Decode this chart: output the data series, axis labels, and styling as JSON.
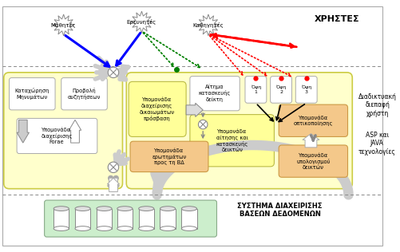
{
  "title_xrhstes": "ΧΡΗΣΤΕΣ",
  "title_diasiktia": "Διαδικτυακή\nδιεπαφή\nχρήστη",
  "title_asp": "ASP και\nJAVA\nτεχνολογίες",
  "title_db": "ΣΥΣΤΗΜΑ ΔΙΑΧΕΙΡΙΣΗΣ\nΒΑΣΕΩΝ ΔΕΔΟΜΕΝΩΝ",
  "label_mathites": "Μαθητές",
  "label_ereunites": "Ερευνητές",
  "label_kathhgites": "Καθηγητές",
  "label_kataxwrhsh": "Καταχώρηση\nΜηνυμάτων",
  "label_provoli": "Προβολή\nαυζητήσεων",
  "label_ypo_for": "Υπομονάδα\nδιαχείρισης\nForae",
  "label_ypo_dik": "Υπομονάδα\nδιαχείρισης\nδικαιωμάτων\nπρόσβαση",
  "label_aitima": "Αίτημα\nκατασκευής\nδείκτη",
  "label_ypo_ait": "Υπομονάδα\nαίτησης και\nκατασκευής\nδεικτών",
  "label_ypo_er": "Υπομονάδα\nερωτημάτων\nπρος τη ΒΔ",
  "label_ypo_opt": "Υπομονάδα\nοπτικοποίησης",
  "label_ypo_yp": "Υπομονάδα\nυπολογισμού\nδεικτών",
  "label_opsi1": "Όψη\n1",
  "label_opsi2": "Όψη\n2",
  "label_opsi3": "Όψη\n3",
  "yellow_light": "#ffffcc",
  "yellow_mid": "#ffff99",
  "orange_box": "#f4c88a",
  "green_db": "#cceecc",
  "white": "#ffffff",
  "gray_edge": "#999999",
  "yellow_edge": "#cccc44"
}
